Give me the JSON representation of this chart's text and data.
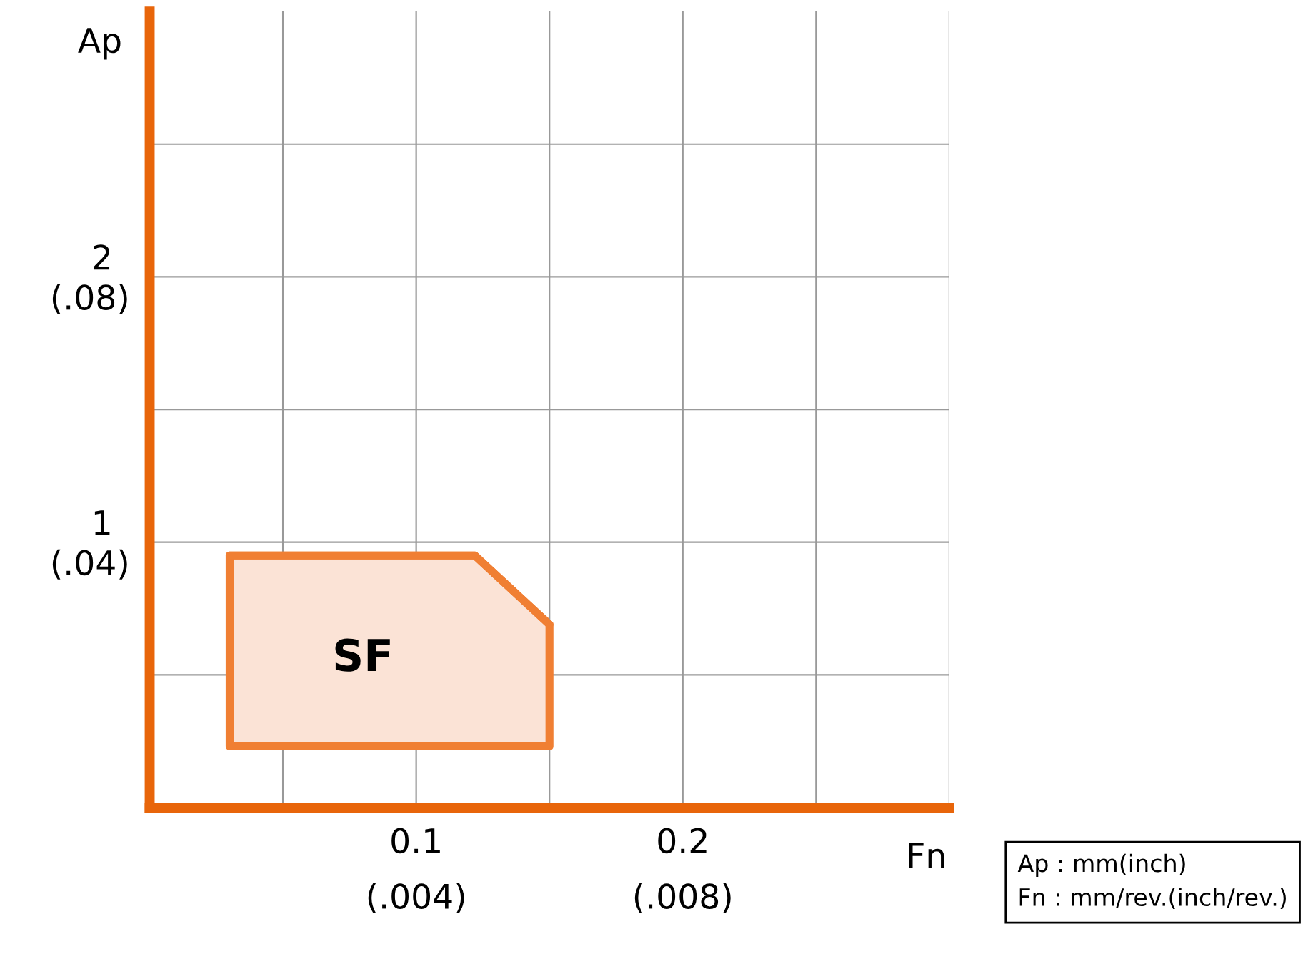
{
  "chart_data": {
    "type": "area",
    "xlabel": "Fn",
    "ylabel": "Ap",
    "xlim": [
      0,
      0.3
    ],
    "ylim": [
      0,
      3
    ],
    "xticks": [
      {
        "value": 0.05,
        "label": null
      },
      0.1,
      {
        "value": 0.15,
        "label": null
      },
      0.2,
      {
        "value": 0.25,
        "label": null
      },
      {
        "value": 0.3,
        "label": null
      }
    ],
    "yticks": [
      {
        "value": 0.5,
        "label": null
      },
      1,
      {
        "value": 1.5,
        "label": null
      },
      2,
      {
        "value": 2.5,
        "label": null
      }
    ],
    "x2lim": [
      0,
      0.012
    ],
    "x2ticks": [
      {
        "value": 0.004,
        "label": "(.004)"
      },
      {
        "value": 0.008,
        "label": "(.008)"
      }
    ],
    "y2lim": [
      0,
      0.12
    ],
    "y2ticks": [
      {
        "value": 0.04,
        "label": "(.04)"
      },
      {
        "value": 0.08,
        "label": "(.08)"
      }
    ],
    "grid": true,
    "series": [
      {
        "name": "SF",
        "type": "line",
        "color": "#f07f33",
        "x": [
          0.03,
          0.122,
          0.15
        ],
        "values": [
          0.95,
          0.95,
          0.69
        ],
        "lower": [
          0.23,
          0.23,
          0.23
        ],
        "upper": [
          0.95,
          0.95,
          0.69
        ]
      }
    ],
    "annotations": [
      "Ap : mm(inch)\nFn : mm/rev.(inch/rev.)"
    ]
  }
}
